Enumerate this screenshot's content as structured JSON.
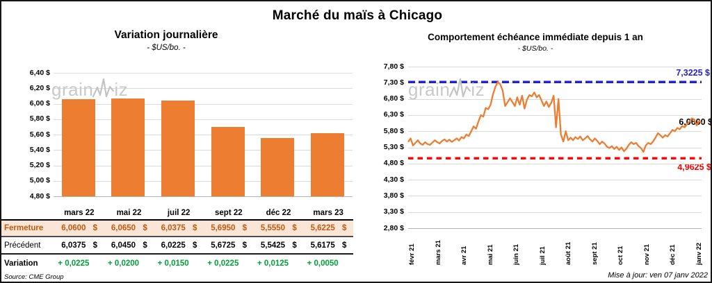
{
  "page": {
    "title": "Marché du maïs à Chicago",
    "source": "Source: CME Group",
    "updated": "Mise à jour: ven 07 janv 2022",
    "watermark": {
      "part1": "grain",
      "part2": "iz"
    }
  },
  "colors": {
    "orange": "#ED7D31",
    "blue": "#2323CC",
    "red": "#FE0000",
    "green": "#00A038",
    "fermeture_text": "#C05A11",
    "fermeture_bg": "#FBE5D6",
    "grid": "#D9D9D9",
    "watermark": "#C9C9C9"
  },
  "chart_data": [
    {
      "type": "bar",
      "title": "Variation  journalière",
      "subtitle": "- $US/bo. -",
      "categories": [
        "mars 22",
        "mai 22",
        "juil 22",
        "sept 22",
        "déc 22",
        "mars 23"
      ],
      "values": [
        6.06,
        6.065,
        6.0375,
        5.695,
        5.555,
        5.6225
      ],
      "ylim": [
        4.8,
        6.4
      ],
      "ytick_step": 0.2,
      "ytick_labels": [
        "6,40 $",
        "6,20 $",
        "6,00 $",
        "5,80 $",
        "5,60 $",
        "5,40 $",
        "5,20 $",
        "5,00 $",
        "4,80 $"
      ],
      "grid": true,
      "legend": "none"
    },
    {
      "type": "line",
      "title": "Comportement  échéance  immédiate  depuis 1 an",
      "subtitle": "- $US/bo. -",
      "x_labels": [
        "févr 21",
        "mars 21",
        "avr 21",
        "mai 21",
        "juin 21",
        "juil 21",
        "août 21",
        "sept 21",
        "oct 21",
        "nov 21",
        "déc 21",
        "janv 22"
      ],
      "values": [
        5.47,
        5.58,
        5.36,
        5.44,
        5.52,
        5.42,
        5.38,
        5.46,
        5.4,
        5.38,
        5.45,
        5.52,
        5.46,
        5.42,
        5.5,
        5.55,
        5.48,
        5.54,
        5.47,
        5.52,
        5.58,
        5.51,
        5.62,
        5.58,
        5.7,
        5.65,
        5.8,
        5.95,
        5.88,
        6.1,
        6.3,
        6.25,
        6.52,
        6.48,
        6.62,
        6.95,
        7.18,
        7.3225,
        7.25,
        7.05,
        6.58,
        6.7,
        6.82,
        6.7,
        6.58,
        6.85,
        6.62,
        6.9,
        6.5,
        6.78,
        6.92,
        6.88,
        7.0,
        6.85,
        6.92,
        6.75,
        6.58,
        6.72,
        6.55,
        6.68,
        6.9,
        5.92,
        6.8,
        5.7,
        5.48,
        5.8,
        5.52,
        5.6,
        5.52,
        5.62,
        5.56,
        5.64,
        5.52,
        5.58,
        5.65,
        5.55,
        5.48,
        5.58,
        5.5,
        5.4,
        5.48,
        5.42,
        5.32,
        5.28,
        5.34,
        5.25,
        5.32,
        5.22,
        5.3,
        5.18,
        5.26,
        5.38,
        5.46,
        5.4,
        5.44,
        5.34,
        5.28,
        5.16,
        5.36,
        5.44,
        5.4,
        5.48,
        5.6,
        5.74,
        5.68,
        5.6,
        5.68,
        5.64,
        5.74,
        5.84,
        5.8,
        5.9,
        5.86,
        5.96,
        5.92,
        6.02,
        6.1,
        6.2,
        6.16,
        5.98,
        6.12,
        6.06
      ],
      "ylim": [
        2.8,
        7.8
      ],
      "ytick_step": 0.5,
      "ytick_labels": [
        "7,80 $",
        "7,30 $",
        "6,80 $",
        "6,30 $",
        "5,80 $",
        "5,30 $",
        "4,80 $",
        "4,30 $",
        "3,80 $",
        "3,30 $",
        "2,80 $"
      ],
      "grid": true,
      "legend": "none",
      "max_line": {
        "value": 7.3225,
        "label": "7,3225 $"
      },
      "min_line": {
        "value": 4.9625,
        "label": "4,9625 $"
      },
      "last_value": 6.06,
      "last_label": "6,0600 $"
    }
  ],
  "table": {
    "columns": [
      "mars 22",
      "mai 22",
      "juil 22",
      "sept 22",
      "déc 22",
      "mars 23"
    ],
    "rows": [
      {
        "key": "fermeture",
        "label": "Fermeture",
        "values": [
          "6,0600",
          "6,0650",
          "6,0375",
          "5,6950",
          "5,5550",
          "5,6225"
        ],
        "suffix": "$"
      },
      {
        "key": "precedent",
        "label": "Précédent",
        "values": [
          "6,0375",
          "6,0450",
          "6,0225",
          "5,6725",
          "5,5425",
          "5,6175"
        ],
        "suffix": "$"
      },
      {
        "key": "variation",
        "label": "Variation",
        "values": [
          "+ 0,0225",
          "+ 0,0200",
          "+ 0,0150",
          "+ 0,0225",
          "+ 0,0125",
          "+ 0,0050"
        ],
        "suffix": ""
      }
    ]
  }
}
